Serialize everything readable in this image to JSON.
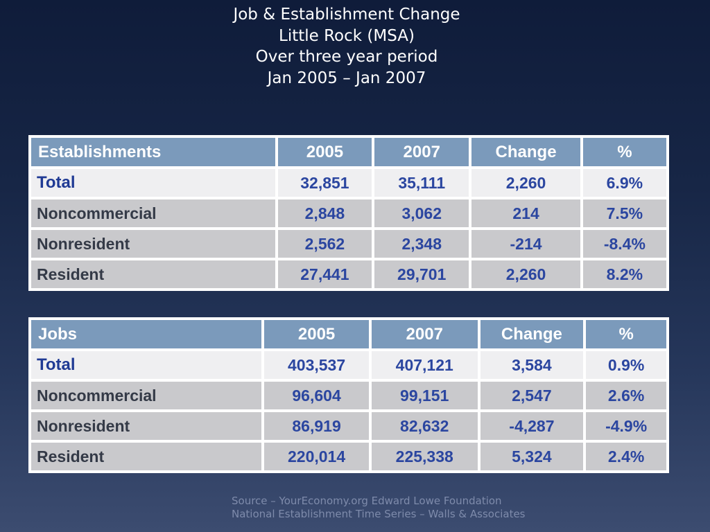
{
  "title": {
    "line1": "Job & Establishment Change",
    "line2": "Little Rock (MSA)",
    "line3": "Over three year period",
    "line4": "Jan 2005 – Jan 2007"
  },
  "establishments": {
    "headers": [
      "Establishments",
      "2005",
      "2007",
      "Change",
      "%"
    ],
    "rows": [
      [
        "Total",
        "32,851",
        "35,111",
        "2,260",
        "6.9%"
      ],
      [
        "Noncommercial",
        "2,848",
        "3,062",
        "214",
        "7.5%"
      ],
      [
        "Nonresident",
        "2,562",
        "2,348",
        "-214",
        "-8.4%"
      ],
      [
        "Resident",
        "27,441",
        "29,701",
        "2,260",
        "8.2%"
      ]
    ]
  },
  "jobs": {
    "headers": [
      "Jobs",
      "2005",
      "2007",
      "Change",
      "%"
    ],
    "rows": [
      [
        "Total",
        "403,537",
        "407,121",
        "3,584",
        "0.9%"
      ],
      [
        "Noncommercial",
        "96,604",
        "99,151",
        "2,547",
        "2.6%"
      ],
      [
        "Nonresident",
        "86,919",
        "82,632",
        "-4,287",
        "-4.9%"
      ],
      [
        "Resident",
        "220,014",
        "225,338",
        "5,324",
        "2.4%"
      ]
    ]
  },
  "source": {
    "line1": "Source – YourEconomy.org Edward Lowe Foundation",
    "line2": "National Establishment Time Series – Walls & Associates"
  },
  "colors": {
    "header_bg": "#7b9abb",
    "value_text": "#2b46a0",
    "label_text": "#343a47",
    "row_gray": "#c9c9cc",
    "row_total": "#efeff1"
  }
}
